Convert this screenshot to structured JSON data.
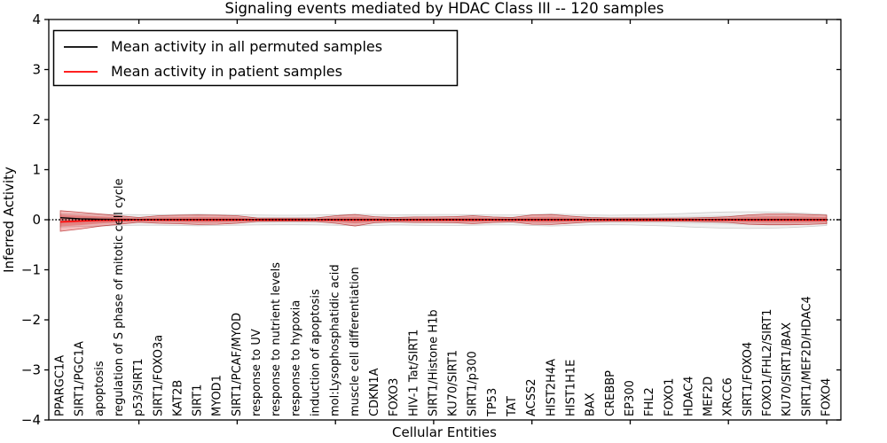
{
  "chart_data": {
    "type": "line",
    "title": "Signaling events mediated by HDAC Class III -- 120 samples",
    "xlabel": "Cellular Entities",
    "ylabel": "Inferred Activity",
    "ylim": [
      -4,
      4
    ],
    "grid": false,
    "legend_position": "upper left",
    "ytick_values": [
      4,
      3,
      2,
      1,
      0,
      -1,
      -2,
      -3,
      -4
    ],
    "ytick_labels": [
      "4",
      "3",
      "2",
      "1",
      "0",
      "−1",
      "−2",
      "−3",
      "−4"
    ],
    "xtick_entity_indices": [
      4,
      9,
      14,
      19,
      24,
      29,
      34,
      39
    ],
    "categories": [
      "PPARGC1A",
      "SIRT1/PGC1A",
      "apoptosis",
      "regulation of S phase of mitotic cell cycle",
      "p53/SIRT1",
      "SIRT1/FOXO3a",
      "KAT2B",
      "SIRT1",
      "MYOD1",
      "SIRT1/PCAF/MYOD",
      "response to UV",
      "response to nutrient levels",
      "response to hypoxia",
      "induction of apoptosis",
      "mol:Lysophosphatidic acid",
      "muscle cell differentiation",
      "CDKN1A",
      "FOXO3",
      "HIV-1 Tat/SIRT1",
      "SIRT1/Histone H1b",
      "KU70/SIRT1",
      "SIRT1/p300",
      "TP53",
      "TAT",
      "ACSS2",
      "HIST2H4A",
      "HIST1H1E",
      "BAX",
      "CREBBP",
      "EP300",
      "FHL2",
      "FOXO1",
      "HDAC4",
      "MEF2D",
      "XRCC6",
      "SIRT1/FOXO4",
      "FOXO1/FHL2/SIRT1",
      "KU70/SIRT1/BAX",
      "SIRT1/MEF2D/HDAC4",
      "FOXO4"
    ],
    "series": [
      {
        "name": "Mean activity in all permuted samples",
        "color": "#000000",
        "values": [
          0.04,
          0.02,
          0.01,
          0.006,
          0.004,
          0.004,
          0.004,
          0.004,
          0.004,
          0.004,
          0.004,
          0.004,
          0.004,
          0.004,
          0.004,
          0.004,
          0.004,
          0.004,
          0.004,
          0.004,
          0.004,
          0.004,
          0.004,
          0.004,
          0.004,
          0.004,
          0.004,
          0.004,
          0.004,
          0.004,
          0.004,
          0.004,
          0.004,
          0.004,
          0.004,
          0.004,
          0.004,
          0.004,
          0.004,
          0.004
        ]
      },
      {
        "name": "Mean activity in patient samples",
        "color": "#ff0000",
        "values": [
          -0.045,
          -0.025,
          -0.012,
          -0.008,
          -0.006,
          -0.006,
          -0.006,
          -0.006,
          -0.006,
          -0.006,
          -0.006,
          -0.006,
          -0.006,
          -0.006,
          -0.006,
          -0.006,
          -0.006,
          -0.006,
          -0.006,
          -0.006,
          -0.006,
          -0.006,
          -0.006,
          -0.006,
          -0.006,
          -0.006,
          -0.006,
          -0.006,
          -0.006,
          -0.006,
          -0.006,
          -0.006,
          -0.006,
          -0.006,
          -0.006,
          -0.006,
          -0.006,
          -0.006,
          -0.006,
          -0.006
        ]
      }
    ],
    "bands": [
      {
        "name": "permuted samples activity spread",
        "color": "#888888",
        "upper": [
          0.12,
          0.115,
          0.11,
          0.105,
          0.1,
          0.1,
          0.105,
          0.11,
          0.105,
          0.1,
          0.095,
          0.09,
          0.09,
          0.095,
          0.1,
          0.11,
          0.105,
          0.095,
          0.1,
          0.105,
          0.105,
          0.1,
          0.095,
          0.095,
          0.105,
          0.115,
          0.105,
          0.095,
          0.09,
          0.095,
          0.105,
          0.115,
          0.13,
          0.145,
          0.155,
          0.16,
          0.155,
          0.145,
          0.125,
          0.105
        ],
        "lower": [
          -0.145,
          -0.135,
          -0.125,
          -0.115,
          -0.11,
          -0.11,
          -0.115,
          -0.12,
          -0.115,
          -0.11,
          -0.105,
          -0.1,
          -0.1,
          -0.105,
          -0.11,
          -0.12,
          -0.115,
          -0.105,
          -0.11,
          -0.115,
          -0.115,
          -0.11,
          -0.105,
          -0.105,
          -0.115,
          -0.125,
          -0.115,
          -0.105,
          -0.1,
          -0.105,
          -0.115,
          -0.125,
          -0.145,
          -0.16,
          -0.17,
          -0.175,
          -0.17,
          -0.16,
          -0.14,
          -0.115
        ]
      },
      {
        "name": "patient samples activity spread",
        "color": "#dd2222",
        "upper": [
          0.18,
          0.15,
          0.115,
          0.08,
          0.045,
          0.08,
          0.09,
          0.095,
          0.09,
          0.08,
          0.035,
          0.032,
          0.032,
          0.035,
          0.08,
          0.105,
          0.06,
          0.045,
          0.055,
          0.055,
          0.06,
          0.08,
          0.055,
          0.045,
          0.095,
          0.105,
          0.07,
          0.045,
          0.035,
          0.035,
          0.032,
          0.032,
          0.035,
          0.045,
          0.06,
          0.095,
          0.115,
          0.115,
          0.105,
          0.09
        ],
        "lower": [
          -0.23,
          -0.185,
          -0.13,
          -0.09,
          -0.05,
          -0.07,
          -0.08,
          -0.095,
          -0.09,
          -0.07,
          -0.035,
          -0.032,
          -0.032,
          -0.035,
          -0.07,
          -0.125,
          -0.06,
          -0.045,
          -0.055,
          -0.055,
          -0.06,
          -0.08,
          -0.055,
          -0.045,
          -0.09,
          -0.095,
          -0.07,
          -0.045,
          -0.035,
          -0.035,
          -0.032,
          -0.032,
          -0.035,
          -0.045,
          -0.055,
          -0.09,
          -0.1,
          -0.1,
          -0.095,
          -0.08
        ]
      }
    ],
    "zero_line": {
      "value": 0,
      "style": "dotted",
      "color": "#000000"
    }
  },
  "legend": {
    "entries": [
      {
        "label": "Mean activity in all permuted samples",
        "color": "#000000"
      },
      {
        "label": "Mean activity in patient samples",
        "color": "#ff0000"
      }
    ]
  }
}
